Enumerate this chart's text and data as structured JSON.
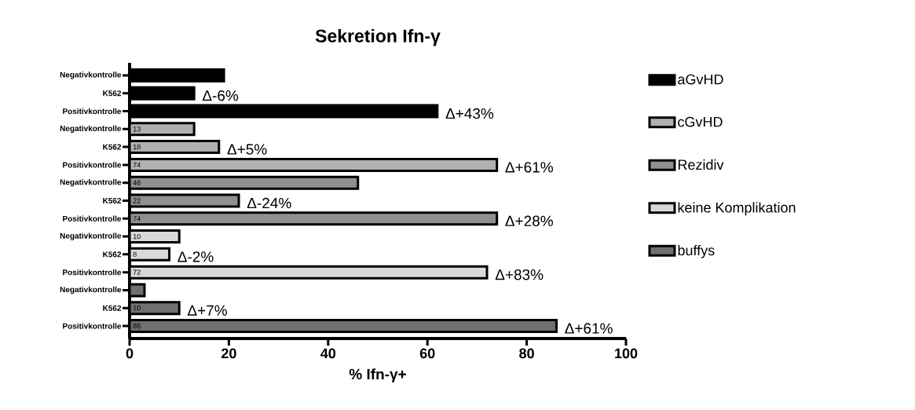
{
  "chart_data": {
    "type": "bar",
    "orientation": "horizontal",
    "title": "Sekretion Ifn-γ",
    "xlabel": "% Ifn-γ+",
    "categories": [
      "Negativkontrolle",
      "K562",
      "Positivkontrolle",
      "Negativkontrolle",
      "K562",
      "Positivkontrolle",
      "Negativkontrolle",
      "K562",
      "Positivkontrolle",
      "Negativkontrolle",
      "K562",
      "Positivkontrolle",
      "Negativkontrolle",
      "K562",
      "Positivkontrolle"
    ],
    "series": [
      {
        "name": "aGvHD",
        "color": "#000000",
        "values": [
          19,
          13,
          62,
          null,
          null,
          null,
          null,
          null,
          null,
          null,
          null,
          null,
          null,
          null,
          null
        ]
      },
      {
        "name": "cGvHD",
        "color": "#b0b0b0",
        "values": [
          null,
          null,
          null,
          13,
          18,
          74,
          null,
          null,
          null,
          null,
          null,
          null,
          null,
          null,
          null
        ],
        "value_labels": [
          null,
          null,
          null,
          "13",
          "18",
          "74",
          null,
          null,
          null,
          null,
          null,
          null,
          null,
          null,
          null
        ]
      },
      {
        "name": "Rezidiv",
        "color": "#909090",
        "values": [
          null,
          null,
          null,
          null,
          null,
          null,
          46,
          22,
          74,
          null,
          null,
          null,
          null,
          null,
          null
        ],
        "value_labels": [
          null,
          null,
          null,
          null,
          null,
          null,
          "46",
          "22",
          "74",
          null,
          null,
          null,
          null,
          null,
          null
        ]
      },
      {
        "name": "keine Komplikation",
        "color": "#d9d9d9",
        "values": [
          null,
          null,
          null,
          null,
          null,
          null,
          null,
          null,
          null,
          10,
          8,
          72,
          null,
          null,
          null
        ],
        "value_labels": [
          null,
          null,
          null,
          null,
          null,
          null,
          null,
          null,
          null,
          "10",
          "8",
          "72",
          null,
          null,
          null
        ]
      },
      {
        "name": "buffys",
        "color": "#707070",
        "values": [
          null,
          null,
          null,
          null,
          null,
          null,
          null,
          null,
          null,
          null,
          null,
          null,
          3,
          10,
          86
        ],
        "value_labels": [
          null,
          null,
          null,
          null,
          null,
          null,
          null,
          null,
          null,
          null,
          null,
          null,
          null,
          "10",
          "86"
        ]
      }
    ],
    "xlim": [
      0,
      100
    ],
    "xticks": [
      0,
      20,
      40,
      60,
      80,
      100
    ],
    "legend": "right",
    "annotations": [
      "Δ-6%",
      "Δ+43%",
      "Δ+5%",
      "Δ+61%",
      "Δ-24%",
      "Δ+28%",
      "Δ-2%",
      "Δ+83%",
      "Δ+7%",
      "Δ+61%"
    ]
  }
}
